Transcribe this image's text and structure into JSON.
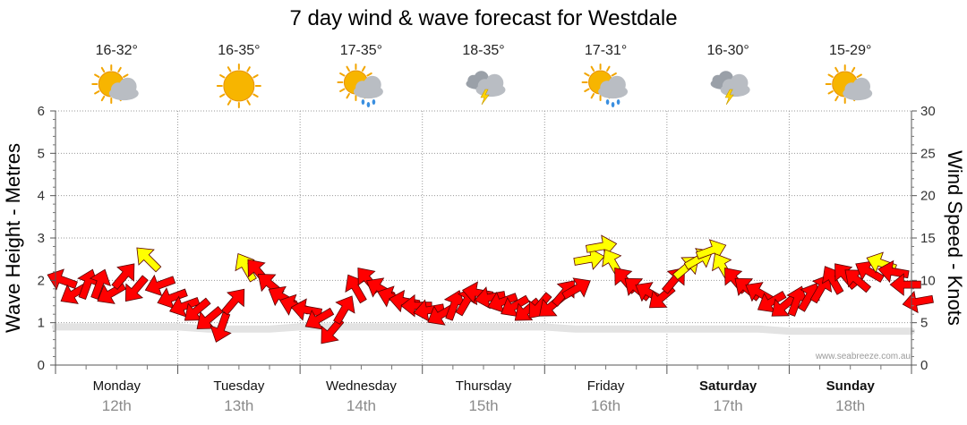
{
  "chart_data": {
    "type": "line",
    "title": "7 day wind & wave forecast for Westdale",
    "ylabel_left": "Wave Height - Metres",
    "ylabel_right": "Wind Speed - Knots",
    "ylim_left": [
      0,
      6
    ],
    "ylim_right": [
      0,
      30
    ],
    "yticks_left": [
      "0",
      "1",
      "2",
      "3",
      "4",
      "5",
      "6"
    ],
    "yticks_right": [
      "0",
      "5",
      "10",
      "15",
      "20",
      "25",
      "30"
    ],
    "days": [
      {
        "name": "Monday",
        "date": "12th",
        "temp_range": "16-32°",
        "icon": "partly-cloudy-icon",
        "bold": false
      },
      {
        "name": "Tuesday",
        "date": "13th",
        "temp_range": "16-35°",
        "icon": "sunny-icon",
        "bold": false
      },
      {
        "name": "Wednesday",
        "date": "14th",
        "temp_range": "17-35°",
        "icon": "sun-cloud-rain-icon",
        "bold": false
      },
      {
        "name": "Thursday",
        "date": "15th",
        "temp_range": "18-35°",
        "icon": "storm-cloud-icon",
        "bold": false
      },
      {
        "name": "Friday",
        "date": "16th",
        "temp_range": "17-31°",
        "icon": "sun-cloud-rain-icon",
        "bold": false
      },
      {
        "name": "Saturday",
        "date": "17th",
        "temp_range": "16-30°",
        "icon": "storm-cloud-icon",
        "bold": true
      },
      {
        "name": "Sunday",
        "date": "18th",
        "temp_range": "15-29°",
        "icon": "partly-cloudy-icon",
        "bold": true
      }
    ],
    "series": [
      {
        "name": "Wind Speed - Knots",
        "style": "arrows",
        "colors": {
          "normal": "#ff0000",
          "strong": "#ffff00"
        },
        "strong_threshold_knots": 11.5,
        "x_day": [
          0.0,
          0.1,
          0.2,
          0.3,
          0.4,
          0.5,
          0.6,
          0.7,
          0.8,
          0.9,
          1.0,
          1.1,
          1.2,
          1.3,
          1.4,
          1.5,
          1.6,
          1.7,
          1.8,
          1.9,
          2.0,
          2.1,
          2.2,
          2.3,
          2.4,
          2.5,
          2.6,
          2.7,
          2.8,
          2.9,
          3.0,
          3.1,
          3.2,
          3.3,
          3.4,
          3.5,
          3.6,
          3.7,
          3.8,
          3.9,
          4.0,
          4.1,
          4.2,
          4.3,
          4.4,
          4.5,
          4.6,
          4.7,
          4.8,
          4.9,
          5.0,
          5.1,
          5.2,
          5.3,
          5.4,
          5.5,
          5.6,
          5.7,
          5.8,
          5.9,
          6.0,
          6.1,
          6.2,
          6.3,
          6.4,
          6.5,
          6.6,
          6.7,
          6.8,
          6.9,
          7.0
        ],
        "values": [
          10,
          8.5,
          9.5,
          9.5,
          8.5,
          10.5,
          9,
          12.5,
          9.5,
          8,
          7,
          6.5,
          5.5,
          4.5,
          7.5,
          11.5,
          11,
          9.5,
          8,
          7,
          6.5,
          5.5,
          4,
          6.5,
          9,
          10,
          9,
          8,
          7.5,
          7,
          6.5,
          6,
          7,
          7.5,
          8.5,
          8,
          7.5,
          7,
          6.5,
          7,
          7,
          8.5,
          9,
          12.5,
          14,
          12,
          10,
          9,
          8.5,
          8,
          10,
          11.5,
          12.5,
          13.5,
          11.5,
          10,
          9,
          8.5,
          7.5,
          7,
          7.5,
          8,
          9,
          10,
          10.5,
          10,
          11,
          12,
          11,
          9.5,
          7.5
        ],
        "directions_deg": [
          290,
          240,
          20,
          20,
          240,
          40,
          220,
          315,
          250,
          250,
          250,
          230,
          230,
          200,
          40,
          330,
          320,
          310,
          300,
          290,
          280,
          240,
          220,
          30,
          330,
          320,
          300,
          290,
          280,
          270,
          260,
          240,
          20,
          30,
          280,
          260,
          250,
          240,
          230,
          220,
          230,
          40,
          60,
          80,
          80,
          330,
          320,
          310,
          300,
          230,
          40,
          50,
          60,
          70,
          330,
          320,
          310,
          300,
          240,
          230,
          20,
          30,
          30,
          330,
          320,
          310,
          300,
          290,
          280,
          270,
          260
        ]
      },
      {
        "name": "Wave Height - Metres",
        "style": "line",
        "color": "#ff0000",
        "x_day": [
          0.0,
          0.25,
          0.5,
          0.75,
          1.0,
          1.25,
          1.5,
          1.75,
          2.0,
          2.25,
          2.5,
          2.75,
          3.0,
          3.25,
          3.5,
          3.75,
          4.0,
          4.25,
          4.5,
          4.75,
          5.0,
          5.25,
          5.5,
          5.75,
          6.0,
          6.25,
          6.5,
          6.75,
          7.0
        ],
        "values": [
          0.9,
          0.9,
          0.9,
          0.9,
          0.9,
          0.85,
          0.85,
          0.85,
          0.9,
          0.9,
          0.9,
          0.9,
          0.9,
          0.9,
          0.9,
          0.9,
          0.9,
          0.85,
          0.85,
          0.85,
          0.85,
          0.85,
          0.85,
          0.85,
          0.8,
          0.8,
          0.8,
          0.8,
          0.8
        ]
      }
    ],
    "grid": true,
    "credit": "www.seabreeze.com.au"
  }
}
